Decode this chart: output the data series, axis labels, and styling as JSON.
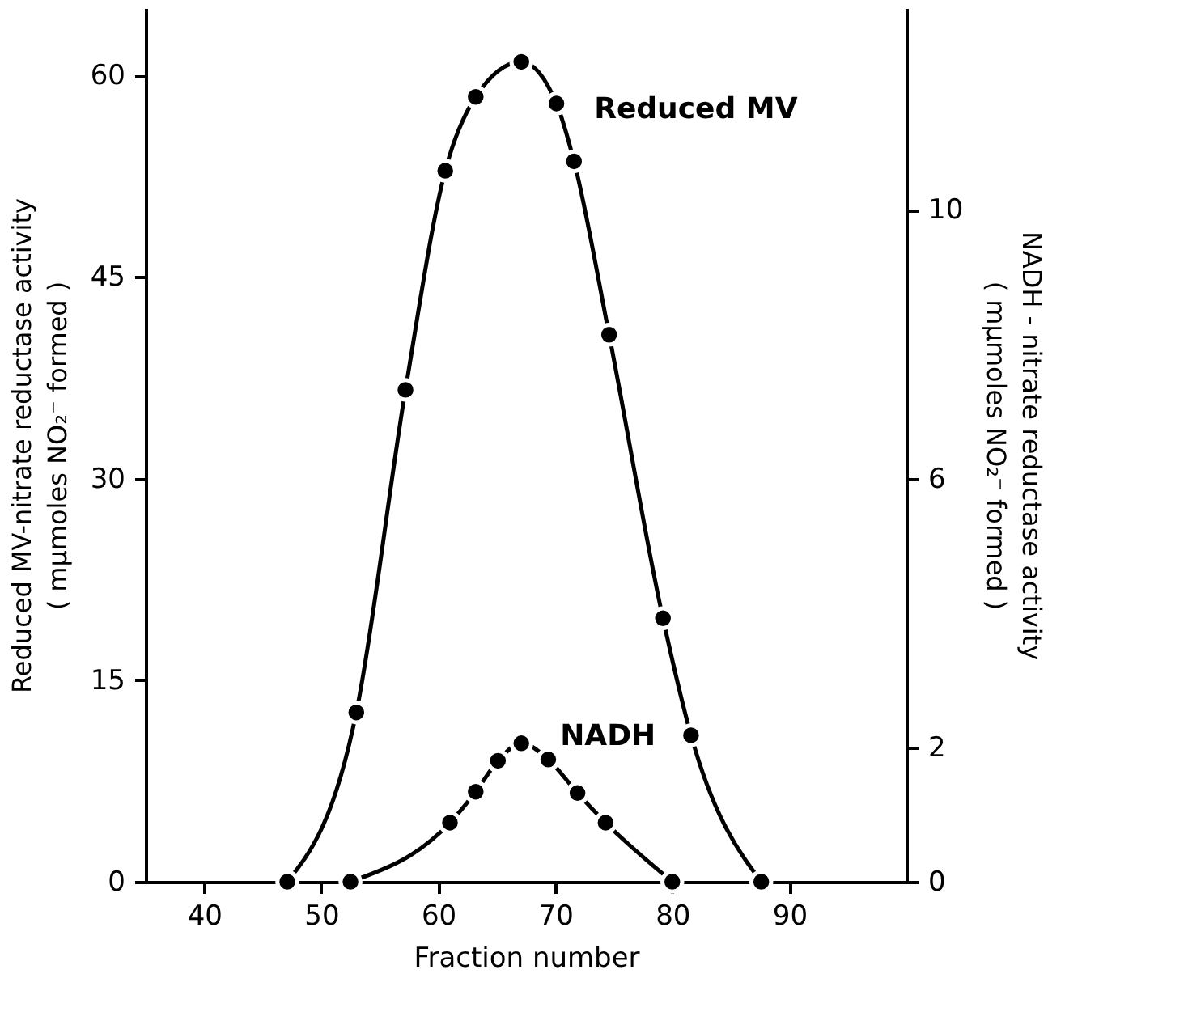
{
  "chart_data": {
    "type": "line",
    "xlabel": "Fraction number",
    "ylabel": "Reduced MV-nitrate reductase activity\n( mμmoles NO₂⁻ formed )",
    "y2label": "NADH - nitrate reductase activity\n( mμmoles NO₂⁻ formed )",
    "xlim": [
      35,
      100
    ],
    "xticks": [
      40,
      50,
      60,
      70,
      80,
      90
    ],
    "ylim": [
      0,
      65
    ],
    "yticks": [
      0,
      15,
      30,
      45,
      60
    ],
    "y2lim": [
      0,
      13
    ],
    "y2ticks": [
      0,
      2,
      6,
      10
    ],
    "grid": false,
    "legend": false,
    "marker": "circle",
    "line_style": "solid",
    "series": [
      {
        "name": "Reduced MV",
        "color": "#000000",
        "x": [
          47.1,
          53.0,
          57.2,
          60.6,
          63.2,
          67.1,
          70.1,
          71.6,
          74.6,
          79.2,
          81.6,
          87.6
        ],
        "values": [
          0,
          12.6,
          36.6,
          52.9,
          58.4,
          61.0,
          57.9,
          53.6,
          40.7,
          19.6,
          10.9,
          0
        ]
      },
      {
        "name": "NADH",
        "axis": "y2",
        "color": "#000000",
        "x": [
          52.5,
          61.0,
          63.2,
          65.1,
          67.1,
          69.4,
          71.9,
          74.3,
          80.0
        ],
        "values": [
          0,
          0.88,
          1.34,
          1.8,
          2.06,
          1.82,
          1.32,
          0.88,
          0
        ]
      }
    ]
  }
}
